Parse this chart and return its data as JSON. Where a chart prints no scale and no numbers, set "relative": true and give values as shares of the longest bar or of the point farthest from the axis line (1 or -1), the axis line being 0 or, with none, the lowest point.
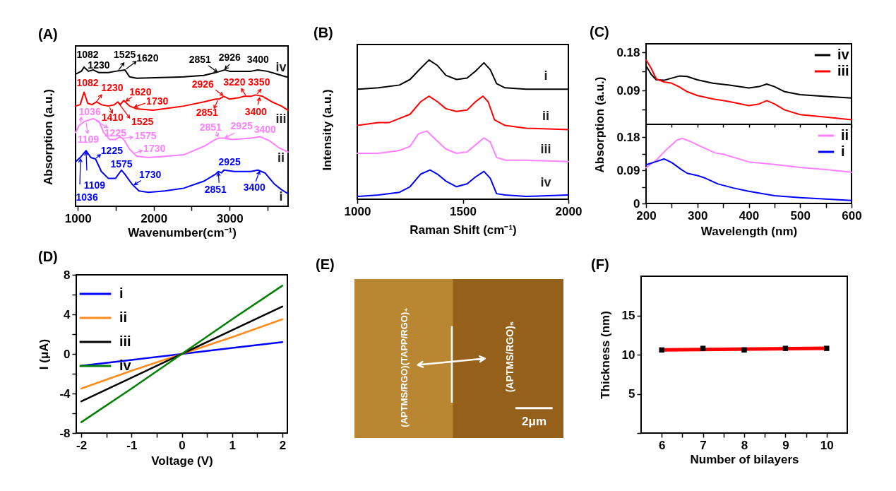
{
  "chart_data": [
    {
      "type": "line",
      "title": "(A)",
      "xlabel": "Wavenumber(cm⁻¹)",
      "ylabel": "Absorption (a.u.)",
      "relative": true,
      "xlim": [
        970,
        3770
      ],
      "xticks": [
        1000,
        {
          "value": 1500,
          "label": null
        },
        2000,
        {
          "value": 2500,
          "label": null
        },
        3000,
        {
          "value": 3500,
          "label": null
        }
      ],
      "series": [
        {
          "name": "iv",
          "color": "#000000",
          "x": [
            970,
            1047,
            1082,
            1140,
            1202,
            1279,
            1403,
            1496,
            1620,
            1682,
            1775,
            2395,
            2659,
            2814,
            2876,
            2938,
            3000,
            3279,
            3372,
            3496,
            3620,
            3744,
            3770
          ],
          "values": [
            0.95,
            0.97,
            1.0,
            0.97,
            0.98,
            0.96,
            0.96,
            0.97,
            0.98,
            0.93,
            0.92,
            0.93,
            0.94,
            0.96,
            0.97,
            0.98,
            0.97,
            0.97,
            0.98,
            0.97,
            0.95,
            0.93,
            0.93
          ]
        },
        {
          "name": "iii",
          "color": "#ff0000",
          "x": [
            970,
            1031,
            1082,
            1130,
            1186,
            1248,
            1310,
            1403,
            1481,
            1527,
            1558,
            1605,
            1682,
            1775,
            1992,
            2395,
            2659,
            2814,
            2860,
            2922,
            3000,
            3124,
            3186,
            3279,
            3341,
            3434,
            3558,
            3682,
            3770
          ],
          "values": [
            0.72,
            0.73,
            0.82,
            0.74,
            0.73,
            0.75,
            0.73,
            0.72,
            0.73,
            0.75,
            0.73,
            0.76,
            0.72,
            0.7,
            0.69,
            0.72,
            0.75,
            0.77,
            0.77,
            0.79,
            0.77,
            0.78,
            0.79,
            0.79,
            0.8,
            0.79,
            0.75,
            0.72,
            0.69
          ]
        },
        {
          "name": "ii",
          "color": "#ff80ff",
          "x": [
            970,
            1016,
            1093,
            1202,
            1279,
            1341,
            1419,
            1496,
            1558,
            1605,
            1682,
            1775,
            1930,
            2395,
            2659,
            2814,
            2860,
            2922,
            3031,
            3279,
            3403,
            3527,
            3651,
            3770
          ],
          "values": [
            0.53,
            0.58,
            0.61,
            0.63,
            0.61,
            0.53,
            0.48,
            0.48,
            0.5,
            0.48,
            0.41,
            0.36,
            0.35,
            0.37,
            0.43,
            0.48,
            0.49,
            0.49,
            0.48,
            0.49,
            0.5,
            0.47,
            0.42,
            0.39
          ]
        },
        {
          "name": "i",
          "color": "#0000ff",
          "x": [
            970,
            1031,
            1109,
            1171,
            1233,
            1310,
            1403,
            1496,
            1575,
            1620,
            1713,
            1806,
            1930,
            2147,
            2395,
            2659,
            2814,
            2851,
            2892,
            2925,
            3062,
            3279,
            3372,
            3465,
            3589,
            3682,
            3770
          ],
          "values": [
            0.32,
            0.35,
            0.4,
            0.35,
            0.34,
            0.25,
            0.2,
            0.2,
            0.26,
            0.23,
            0.16,
            0.11,
            0.1,
            0.11,
            0.13,
            0.18,
            0.23,
            0.25,
            0.24,
            0.26,
            0.25,
            0.25,
            0.26,
            0.24,
            0.16,
            0.12,
            0.09
          ]
        }
      ],
      "annotations": [
        {
          "text": "1082",
          "x": 1082,
          "y": 1.0
        },
        {
          "text": "1230",
          "x": 1230,
          "y": 0.97
        },
        {
          "text": "1525",
          "x": 1525,
          "y": 0.97
        },
        {
          "text": "1620",
          "x": 1620,
          "y": 0.98
        },
        {
          "text": "2851",
          "x": 2851,
          "y": 0.96
        },
        {
          "text": "2926",
          "x": 2926,
          "y": 0.98
        },
        {
          "text": "3400",
          "x": 3400,
          "y": 0.98
        },
        {
          "text": "1082",
          "x": 1082,
          "y": 0.82
        },
        {
          "text": "1230",
          "x": 1230,
          "y": 0.74
        },
        {
          "text": "1620",
          "x": 1620,
          "y": 0.75
        },
        {
          "text": "1730",
          "x": 1730,
          "y": 0.71
        },
        {
          "text": "1410",
          "x": 1410,
          "y": 0.72
        },
        {
          "text": "1525",
          "x": 1525,
          "y": 0.75
        },
        {
          "text": "2926",
          "x": 2926,
          "y": 0.79
        },
        {
          "text": "3220",
          "x": 3220,
          "y": 0.79
        },
        {
          "text": "3350",
          "x": 3350,
          "y": 0.8
        },
        {
          "text": "2851",
          "x": 2851,
          "y": 0.77
        },
        {
          "text": "3400",
          "x": 3400,
          "y": 0.79
        },
        {
          "text": "1036",
          "x": 1036,
          "y": 0.59
        },
        {
          "text": "1109",
          "x": 1109,
          "y": 0.61
        },
        {
          "text": "1225",
          "x": 1225,
          "y": 0.62
        },
        {
          "text": "1575",
          "x": 1575,
          "y": 0.49
        },
        {
          "text": "1730",
          "x": 1730,
          "y": 0.38
        },
        {
          "text": "2851",
          "x": 2851,
          "y": 0.49
        },
        {
          "text": "2925",
          "x": 2925,
          "y": 0.49
        },
        {
          "text": "3400",
          "x": 3400,
          "y": 0.5
        },
        {
          "text": "1225",
          "x": 1225,
          "y": 0.34
        },
        {
          "text": "1575",
          "x": 1575,
          "y": 0.26
        },
        {
          "text": "1730",
          "x": 1730,
          "y": 0.15
        },
        {
          "text": "2925",
          "x": 2925,
          "y": 0.26
        },
        {
          "text": "2851",
          "x": 2851,
          "y": 0.25
        },
        {
          "text": "3400",
          "x": 3400,
          "y": 0.26
        },
        {
          "text": "1109",
          "x": 1109,
          "y": 0.4
        },
        {
          "text": "1036",
          "x": 1036,
          "y": 0.35
        }
      ]
    },
    {
      "type": "line",
      "title": "(B)",
      "xlabel": "Raman Shift (cm⁻¹)",
      "ylabel": "Intensity (a.u.)",
      "relative": true,
      "xlim": [
        1000,
        2000
      ],
      "xticks": [
        1000,
        1500,
        2000
      ],
      "series": [
        {
          "name": "i",
          "color": "#000000",
          "x": [
            1000,
            1100,
            1200,
            1250,
            1300,
            1340,
            1380,
            1420,
            1470,
            1520,
            1560,
            1600,
            1630,
            1660,
            1700,
            1800,
            2000
          ],
          "values": [
            0.79,
            0.8,
            0.82,
            0.86,
            0.94,
            1.0,
            0.96,
            0.89,
            0.86,
            0.87,
            0.92,
            0.98,
            0.93,
            0.83,
            0.8,
            0.79,
            0.79
          ]
        },
        {
          "name": "ii",
          "color": "#ff0000",
          "x": [
            1000,
            1100,
            1150,
            1200,
            1250,
            1300,
            1340,
            1380,
            1420,
            1470,
            1520,
            1560,
            1595,
            1620,
            1650,
            1700,
            1800,
            2000
          ],
          "values": [
            0.53,
            0.55,
            0.55,
            0.58,
            0.61,
            0.7,
            0.74,
            0.7,
            0.65,
            0.63,
            0.64,
            0.7,
            0.74,
            0.7,
            0.57,
            0.53,
            0.51,
            0.5
          ]
        },
        {
          "name": "iii",
          "color": "#ff80ff",
          "x": [
            1000,
            1100,
            1200,
            1250,
            1290,
            1330,
            1370,
            1420,
            1470,
            1520,
            1560,
            1600,
            1630,
            1660,
            1700,
            1800,
            2000
          ],
          "values": [
            0.33,
            0.33,
            0.35,
            0.38,
            0.47,
            0.49,
            0.43,
            0.36,
            0.33,
            0.34,
            0.39,
            0.44,
            0.41,
            0.3,
            0.28,
            0.28,
            0.27
          ]
        },
        {
          "name": "iv",
          "color": "#0000ff",
          "x": [
            1000,
            1100,
            1200,
            1250,
            1300,
            1345,
            1380,
            1420,
            1470,
            1520,
            1560,
            1600,
            1630,
            1660,
            1700,
            1800,
            2000
          ],
          "values": [
            0.02,
            0.03,
            0.05,
            0.09,
            0.18,
            0.21,
            0.18,
            0.13,
            0.09,
            0.11,
            0.16,
            0.2,
            0.15,
            0.04,
            0.03,
            0.02,
            0.03
          ]
        }
      ]
    },
    {
      "type": "line",
      "title": "(C)",
      "xlim": [
        200,
        600
      ],
      "xticks": [
        200,
        {
          "value": 250,
          "label": null
        },
        300,
        {
          "value": 350,
          "label": null
        },
        400,
        {
          "value": 450,
          "label": null
        },
        500,
        {
          "value": 550,
          "label": null
        },
        600
      ],
      "tick_labels": "y",
      "ylim": [
        0.01,
        0.2
      ],
      "yticks": [
        {
          "value": 0.045,
          "label": null
        },
        0.09,
        {
          "value": 0.135,
          "label": null
        },
        0.18
      ],
      "legend": "top right",
      "x": [
        200,
        210,
        220,
        235,
        250,
        265,
        280,
        300,
        330,
        360,
        400,
        420,
        435,
        450,
        470,
        500,
        550,
        600
      ],
      "series": [
        {
          "name": "iv",
          "color": "#000000",
          "values": [
            0.148,
            0.128,
            0.115,
            0.114,
            0.119,
            0.124,
            0.123,
            0.115,
            0.107,
            0.103,
            0.096,
            0.099,
            0.105,
            0.099,
            0.087,
            0.08,
            0.076,
            0.072
          ]
        },
        {
          "name": "iii",
          "color": "#ff0000",
          "values": [
            0.162,
            0.142,
            0.117,
            0.11,
            0.107,
            0.098,
            0.087,
            0.078,
            0.07,
            0.064,
            0.054,
            0.058,
            0.066,
            0.058,
            0.044,
            0.033,
            0.027,
            0.021
          ]
        }
      ]
    },
    {
      "type": "line",
      "xlabel": "Wavelength (nm)",
      "ylabel": "Absorption (a.u.)",
      "xlim": [
        200,
        600
      ],
      "xticks": [
        200,
        {
          "value": 250,
          "label": null
        },
        300,
        {
          "value": 350,
          "label": null
        },
        400,
        {
          "value": 450,
          "label": null
        },
        500,
        {
          "value": 550,
          "label": null
        },
        600
      ],
      "ylim": [
        0,
        0.215
      ],
      "yticks": [
        0,
        {
          "value": 0.045,
          "label": null
        },
        0.09,
        {
          "value": 0.135,
          "label": null
        },
        0.18
      ],
      "legend": "top right",
      "series": [
        {
          "name": "ii",
          "color": "#ff80ff",
          "x": [
            200,
            220,
            240,
            260,
            270,
            285,
            300,
            335,
            350,
            400,
            450,
            500,
            550,
            600
          ],
          "values": [
            0.097,
            0.118,
            0.147,
            0.172,
            0.177,
            0.169,
            0.159,
            0.137,
            0.134,
            0.113,
            0.106,
            0.098,
            0.092,
            0.085
          ]
        },
        {
          "name": "i",
          "color": "#0000ff",
          "x": [
            200,
            220,
            235,
            250,
            270,
            280,
            300,
            315,
            340,
            370,
            400,
            450,
            500,
            550,
            600
          ],
          "values": [
            0.105,
            0.114,
            0.121,
            0.111,
            0.091,
            0.082,
            0.076,
            0.069,
            0.053,
            0.042,
            0.033,
            0.021,
            0.016,
            0.012,
            0.008
          ]
        }
      ]
    },
    {
      "type": "line",
      "title": "(D)",
      "xlabel": "Voltage (V)",
      "ylabel": "I (μA)",
      "xlim": [
        -2.1,
        2.1
      ],
      "xticks": [
        -2,
        {
          "value": -1.5,
          "label": null
        },
        -1,
        {
          "value": -0.5,
          "label": null
        },
        0,
        {
          "value": 0.5,
          "label": null
        },
        1,
        {
          "value": 1.5,
          "label": null
        },
        2
      ],
      "ylim": [
        -8,
        8
      ],
      "yticks": [
        -8,
        {
          "value": -6,
          "label": null
        },
        -4,
        {
          "value": -2,
          "label": null
        },
        0,
        {
          "value": 2,
          "label": null
        },
        4,
        {
          "value": 6,
          "label": null
        },
        8
      ],
      "legend": "top left",
      "x": [
        -2,
        -1,
        0,
        1,
        2
      ],
      "series": [
        {
          "name": "i",
          "color": "#0000ff",
          "values": [
            -1.2,
            -0.6,
            0,
            0.6,
            1.2
          ]
        },
        {
          "name": "ii",
          "color": "#ff8c1a",
          "values": [
            -3.5,
            -1.7,
            0,
            1.7,
            3.5
          ]
        },
        {
          "name": "iii",
          "color": "#000000",
          "values": [
            -4.8,
            -2.4,
            0,
            2.4,
            4.8
          ]
        },
        {
          "name": "iv",
          "color": "#008000",
          "values": [
            -6.9,
            -3.5,
            0,
            3.5,
            6.9
          ]
        }
      ]
    },
    {
      "type": "other",
      "title": "(E)",
      "annotations": [
        "(APTMS/RGO)(TAPP/RGO)₄",
        "(APTMS/RGO)₅",
        "2μm"
      ]
    },
    {
      "type": "scatter",
      "title": "(F)",
      "xlabel": "Number of bilayers",
      "ylabel": "Thickness (nm)",
      "xlim": [
        5.5,
        10.5
      ],
      "xticks": [
        6,
        {
          "value": 6.5,
          "label": null
        },
        7,
        {
          "value": 7.5,
          "label": null
        },
        8,
        {
          "value": 8.5,
          "label": null
        },
        9,
        {
          "value": 9.5,
          "label": null
        },
        10
      ],
      "ylim": [
        0,
        20
      ],
      "yticks": [
        {
          "value": 0,
          "label": null
        },
        5,
        10,
        15
      ],
      "marker": "square",
      "series": [
        {
          "type": "line",
          "color": "#ff0000",
          "x": [
            6,
            10
          ],
          "values": [
            10.6,
            10.8
          ],
          "marker": "none"
        },
        {
          "type": "scatter",
          "color": "#000000",
          "x": [
            6,
            7,
            8,
            9,
            10
          ],
          "values": [
            10.6,
            10.8,
            10.6,
            10.8,
            10.8
          ]
        }
      ]
    }
  ]
}
